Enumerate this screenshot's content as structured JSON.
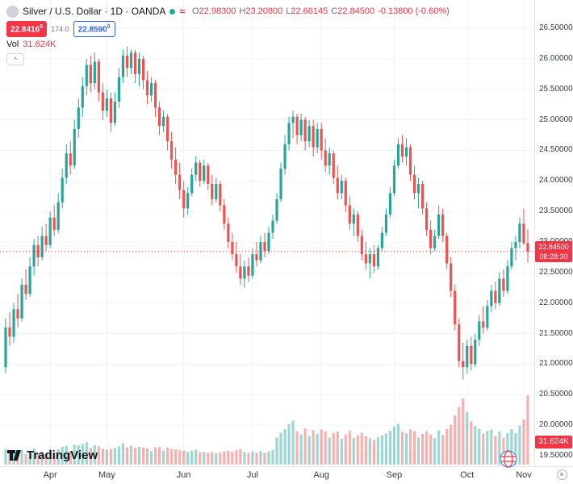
{
  "header": {
    "symbol_title": "Silver / U.S. Dollar · 1D · OANDA",
    "ohlc": {
      "o_label": "O",
      "o": "22.98300",
      "h_label": "H",
      "h": "23.20800",
      "l_label": "L",
      "l": "22.66145",
      "c_label": "C",
      "c": "22.84500",
      "change": "-0.13800 (-0.60%)"
    },
    "sell_price_main": "22.8416",
    "sell_price_sup": "0",
    "spread": "174.0",
    "buy_price_main": "22.8590",
    "buy_price_sup": "0",
    "vol_label": "Vol",
    "vol_value": "31.624K",
    "collapse_glyph": "^"
  },
  "badges": {
    "last_price": "22.84500",
    "countdown": "08:28:30",
    "volume": "31.624K"
  },
  "logo": {
    "text": "TradingView"
  },
  "icons": {
    "market_status": "green-dot",
    "delayed_data": "approx-wave",
    "broker": "oanda-globe",
    "axis_corner": "clock-circle"
  },
  "colors": {
    "up": "#26a69a",
    "down": "#ef5350",
    "accent_red": "#f23645",
    "accent_blue": "#2962ff",
    "grid": "#f0f3fa",
    "axis_text": "#363a45"
  },
  "chart_data": {
    "type": "candlestick",
    "title": "Silver / U.S. Dollar",
    "interval": "1D",
    "exchange": "OANDA",
    "last_price": 22.845,
    "price_axis": {
      "min": 19.5,
      "max": 26.5,
      "step": 0.5,
      "labels": [
        "26.50000",
        "26.00000",
        "25.50000",
        "25.00000",
        "24.50000",
        "24.00000",
        "23.50000",
        "23.00000",
        "22.50000",
        "22.00000",
        "21.50000",
        "21.00000",
        "20.50000",
        "20.00000",
        "19.50000"
      ]
    },
    "x_ticks": [
      {
        "label": "Apr",
        "index": 11
      },
      {
        "label": "May",
        "index": 25
      },
      {
        "label": "Jun",
        "index": 44
      },
      {
        "label": "Jul",
        "index": 61
      },
      {
        "label": "Aug",
        "index": 78
      },
      {
        "label": "Sep",
        "index": 96
      },
      {
        "label": "Oct",
        "index": 114
      },
      {
        "label": "Nov",
        "index": 128
      }
    ],
    "volume_scale_max": 35,
    "volume_unit": "K",
    "candles": [
      [
        20.95,
        21.75,
        20.85,
        21.6,
        7.2
      ],
      [
        21.6,
        21.85,
        21.3,
        21.45,
        5.1
      ],
      [
        21.45,
        22.0,
        21.35,
        21.9,
        6.3
      ],
      [
        21.9,
        22.15,
        21.6,
        21.75,
        4.8
      ],
      [
        21.75,
        22.4,
        21.7,
        22.3,
        6.6
      ],
      [
        22.3,
        22.55,
        22.05,
        22.15,
        4.9
      ],
      [
        22.15,
        22.75,
        22.1,
        22.6,
        6.1
      ],
      [
        22.6,
        23.05,
        22.45,
        22.95,
        7.4
      ],
      [
        22.95,
        23.1,
        22.6,
        22.75,
        5.2
      ],
      [
        22.75,
        23.25,
        22.7,
        23.1,
        6.0
      ],
      [
        23.1,
        23.3,
        22.85,
        22.95,
        4.7
      ],
      [
        22.95,
        23.5,
        22.9,
        23.4,
        7.1
      ],
      [
        23.4,
        23.6,
        23.1,
        23.2,
        5.3
      ],
      [
        23.2,
        23.8,
        23.15,
        23.65,
        7.0
      ],
      [
        23.65,
        24.2,
        23.55,
        24.05,
        8.2
      ],
      [
        24.05,
        24.6,
        23.95,
        24.45,
        8.6
      ],
      [
        24.45,
        24.65,
        24.1,
        24.25,
        5.9
      ],
      [
        24.25,
        25.0,
        24.2,
        24.85,
        9.1
      ],
      [
        24.85,
        25.35,
        24.7,
        25.2,
        8.8
      ],
      [
        25.2,
        25.7,
        25.05,
        25.55,
        9.4
      ],
      [
        25.55,
        26.0,
        25.4,
        25.9,
        10.2
      ],
      [
        25.9,
        26.05,
        25.45,
        25.6,
        7.8
      ],
      [
        25.6,
        26.1,
        25.5,
        25.95,
        8.9
      ],
      [
        25.95,
        26.0,
        25.3,
        25.45,
        8.4
      ],
      [
        25.45,
        25.6,
        25.0,
        25.15,
        7.3
      ],
      [
        25.15,
        25.5,
        25.05,
        25.35,
        6.8
      ],
      [
        25.35,
        25.45,
        24.8,
        24.95,
        7.2
      ],
      [
        24.95,
        25.45,
        24.9,
        25.3,
        7.6
      ],
      [
        25.3,
        25.85,
        25.2,
        25.7,
        8.3
      ],
      [
        25.7,
        26.15,
        25.6,
        26.05,
        9.8
      ],
      [
        26.05,
        26.2,
        25.7,
        25.85,
        7.9
      ],
      [
        25.85,
        26.15,
        25.75,
        26.1,
        8.7
      ],
      [
        26.1,
        26.15,
        25.6,
        25.75,
        7.7
      ],
      [
        25.75,
        26.1,
        25.55,
        26.0,
        8.1
      ],
      [
        26.0,
        26.05,
        25.5,
        25.65,
        7.8
      ],
      [
        25.65,
        25.8,
        25.25,
        25.4,
        7.4
      ],
      [
        25.4,
        25.7,
        25.3,
        25.6,
        6.2
      ],
      [
        25.6,
        25.65,
        25.05,
        25.2,
        7.9
      ],
      [
        25.2,
        25.3,
        24.75,
        24.9,
        8.0
      ],
      [
        24.9,
        25.15,
        24.8,
        25.05,
        6.4
      ],
      [
        25.05,
        25.1,
        24.5,
        24.65,
        7.8
      ],
      [
        24.65,
        24.8,
        24.2,
        24.35,
        7.2
      ],
      [
        24.35,
        24.55,
        23.95,
        24.1,
        6.9
      ],
      [
        24.1,
        24.3,
        23.7,
        23.85,
        6.6
      ],
      [
        23.85,
        24.0,
        23.4,
        23.55,
        6.3
      ],
      [
        23.55,
        23.9,
        23.45,
        23.8,
        5.8
      ],
      [
        23.8,
        24.2,
        23.75,
        24.1,
        6.4
      ],
      [
        24.1,
        24.4,
        24.0,
        24.3,
        6.9
      ],
      [
        24.3,
        24.35,
        23.9,
        24.0,
        5.7
      ],
      [
        24.0,
        24.35,
        23.95,
        24.25,
        5.9
      ],
      [
        24.25,
        24.3,
        23.85,
        23.95,
        5.4
      ],
      [
        23.95,
        24.1,
        23.6,
        23.7,
        5.8
      ],
      [
        23.7,
        24.05,
        23.65,
        23.95,
        5.2
      ],
      [
        23.95,
        24.0,
        23.5,
        23.6,
        5.6
      ],
      [
        23.6,
        23.7,
        23.2,
        23.3,
        6.1
      ],
      [
        23.3,
        23.4,
        22.9,
        23.0,
        6.4
      ],
      [
        23.0,
        23.15,
        22.7,
        22.8,
        5.9
      ],
      [
        22.8,
        23.0,
        22.5,
        22.6,
        6.6
      ],
      [
        22.6,
        22.8,
        22.3,
        22.4,
        7.1
      ],
      [
        22.4,
        22.7,
        22.25,
        22.6,
        5.8
      ],
      [
        22.6,
        22.75,
        22.35,
        22.45,
        5.3
      ],
      [
        22.45,
        22.9,
        22.4,
        22.8,
        6.0
      ],
      [
        22.8,
        23.0,
        22.6,
        22.7,
        5.5
      ],
      [
        22.7,
        23.1,
        22.65,
        23.0,
        6.2
      ],
      [
        23.0,
        23.15,
        22.75,
        22.85,
        5.4
      ],
      [
        22.85,
        23.25,
        22.8,
        23.15,
        6.1
      ],
      [
        23.15,
        23.45,
        23.05,
        23.35,
        6.7
      ],
      [
        23.35,
        23.8,
        23.3,
        23.7,
        12.4
      ],
      [
        23.7,
        24.3,
        23.65,
        24.2,
        14.6
      ],
      [
        24.2,
        24.75,
        24.1,
        24.6,
        16.2
      ],
      [
        24.6,
        25.05,
        24.5,
        24.95,
        18.4
      ],
      [
        24.95,
        25.15,
        24.7,
        25.05,
        20.1
      ],
      [
        25.05,
        25.1,
        24.6,
        24.75,
        15.3
      ],
      [
        24.75,
        25.1,
        24.65,
        25.0,
        13.8
      ],
      [
        25.0,
        25.05,
        24.5,
        24.65,
        16.5
      ],
      [
        24.65,
        25.0,
        24.55,
        24.9,
        13.2
      ],
      [
        24.9,
        25.0,
        24.4,
        24.55,
        15.7
      ],
      [
        24.55,
        24.95,
        24.45,
        24.85,
        14.1
      ],
      [
        24.85,
        24.95,
        24.35,
        24.5,
        16.0
      ],
      [
        24.5,
        24.7,
        24.15,
        24.25,
        15.2
      ],
      [
        24.25,
        24.55,
        24.1,
        24.45,
        12.3
      ],
      [
        24.45,
        24.5,
        23.95,
        24.05,
        14.4
      ],
      [
        24.05,
        24.25,
        23.7,
        23.8,
        15.1
      ],
      [
        23.8,
        24.1,
        23.7,
        24.0,
        11.9
      ],
      [
        24.0,
        24.05,
        23.5,
        23.6,
        13.7
      ],
      [
        23.6,
        23.75,
        23.2,
        23.3,
        15.4
      ],
      [
        23.3,
        23.55,
        23.1,
        23.45,
        12.2
      ],
      [
        23.45,
        23.5,
        23.0,
        23.1,
        13.4
      ],
      [
        23.1,
        23.2,
        22.7,
        22.8,
        14.6
      ],
      [
        22.8,
        23.0,
        22.55,
        22.65,
        13.1
      ],
      [
        22.65,
        22.9,
        22.4,
        22.8,
        12.0
      ],
      [
        22.8,
        22.95,
        22.5,
        22.6,
        11.2
      ],
      [
        22.6,
        22.95,
        22.55,
        22.9,
        12.5
      ],
      [
        22.9,
        23.25,
        22.85,
        23.15,
        13.3
      ],
      [
        23.15,
        23.55,
        23.1,
        23.45,
        14.2
      ],
      [
        23.45,
        23.9,
        23.4,
        23.8,
        15.5
      ],
      [
        23.8,
        24.35,
        23.75,
        24.25,
        17.3
      ],
      [
        24.25,
        24.7,
        24.2,
        24.6,
        18.6
      ],
      [
        24.6,
        24.75,
        24.3,
        24.4,
        15.0
      ],
      [
        24.4,
        24.7,
        24.25,
        24.55,
        14.3
      ],
      [
        24.55,
        24.6,
        24.0,
        24.1,
        16.1
      ],
      [
        24.1,
        24.25,
        23.7,
        23.8,
        15.3
      ],
      [
        23.8,
        24.05,
        23.55,
        23.95,
        12.4
      ],
      [
        23.95,
        24.0,
        23.45,
        23.55,
        14.0
      ],
      [
        23.55,
        23.65,
        23.1,
        23.2,
        15.2
      ],
      [
        23.2,
        23.35,
        22.8,
        22.9,
        13.8
      ],
      [
        22.9,
        23.2,
        22.85,
        23.1,
        12.1
      ],
      [
        23.1,
        23.6,
        23.05,
        23.45,
        15.6
      ],
      [
        23.45,
        23.55,
        23.0,
        23.1,
        13.5
      ],
      [
        23.1,
        23.15,
        22.55,
        22.65,
        16.4
      ],
      [
        22.65,
        22.75,
        22.1,
        22.2,
        18.2
      ],
      [
        22.2,
        22.3,
        21.55,
        21.65,
        22.5
      ],
      [
        21.65,
        21.75,
        20.95,
        21.05,
        26.3
      ],
      [
        21.05,
        21.35,
        20.75,
        20.95,
        30.2
      ],
      [
        20.95,
        21.4,
        20.85,
        21.3,
        24.1
      ],
      [
        21.3,
        21.45,
        20.9,
        21.0,
        19.8
      ],
      [
        21.0,
        21.5,
        20.95,
        21.4,
        17.6
      ],
      [
        21.4,
        21.8,
        21.3,
        21.7,
        16.3
      ],
      [
        21.7,
        21.95,
        21.5,
        21.6,
        14.2
      ],
      [
        21.6,
        22.05,
        21.55,
        21.95,
        15.4
      ],
      [
        21.95,
        22.3,
        21.85,
        22.2,
        16.0
      ],
      [
        22.2,
        22.35,
        21.9,
        22.0,
        13.1
      ],
      [
        22.0,
        22.5,
        21.95,
        22.4,
        15.2
      ],
      [
        22.4,
        22.55,
        22.1,
        22.2,
        12.3
      ],
      [
        22.2,
        22.7,
        22.15,
        22.6,
        14.5
      ],
      [
        22.6,
        23.0,
        22.55,
        22.9,
        16.2
      ],
      [
        22.9,
        23.1,
        22.7,
        23.0,
        14.4
      ],
      [
        23.0,
        23.4,
        22.9,
        23.3,
        17.8
      ],
      [
        23.3,
        23.55,
        22.95,
        22.98,
        20.6
      ],
      [
        22.983,
        23.208,
        22.661,
        22.845,
        31.624
      ]
    ]
  }
}
